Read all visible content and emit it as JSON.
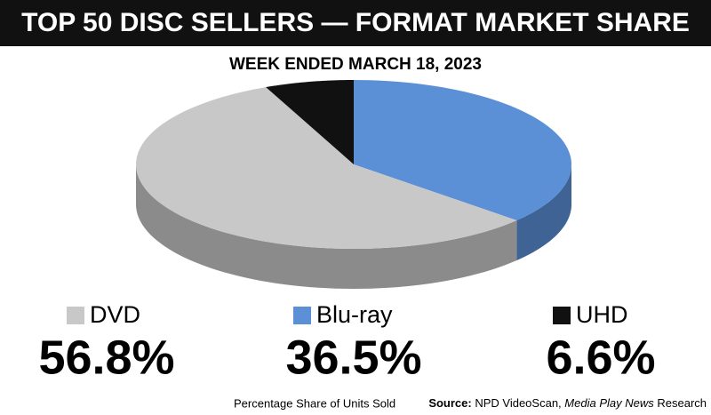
{
  "chart_data": {
    "type": "pie",
    "title": "TOP 50 DISC SELLERS — FORMAT MARKET SHARE",
    "subtitle": "WEEK ENDED MARCH 18, 2023",
    "categories": [
      "DVD",
      "Blu-ray",
      "UHD"
    ],
    "values": [
      56.8,
      36.5,
      6.6
    ],
    "value_labels": [
      "56.8%",
      "36.5%",
      "6.6%"
    ],
    "colors": [
      "#c8c8c8",
      "#5b8fd6",
      "#111111"
    ],
    "footnote": "Percentage Share of Units Sold",
    "source_label": "Source:",
    "source_text": "NPD VideoScan,",
    "source_publication": "Media Play News",
    "source_suffix": "Research"
  }
}
